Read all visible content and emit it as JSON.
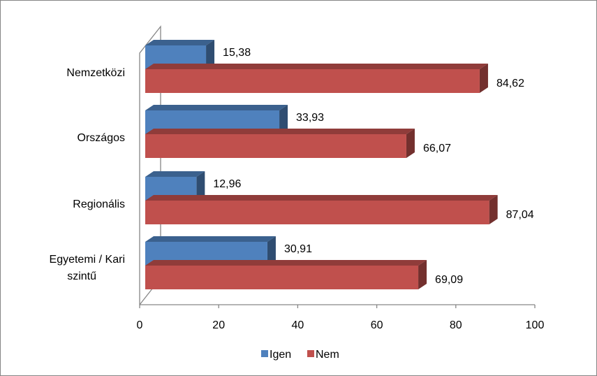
{
  "chart_data": {
    "type": "bar",
    "orientation": "horizontal",
    "three_d": true,
    "categories": [
      "Nemzetközi",
      "Országos",
      "Regionális",
      "Egyetemi / Kari szintű"
    ],
    "series": [
      {
        "name": "Igen",
        "values": [
          15.38,
          33.93,
          12.96,
          30.91
        ],
        "color": "#4F81BD",
        "labels": [
          "15,38",
          "33,93",
          "12,96",
          "30,91"
        ]
      },
      {
        "name": "Nem",
        "values": [
          84.62,
          66.07,
          87.04,
          69.09
        ],
        "color": "#C0504D",
        "labels": [
          "84,62",
          "66,07",
          "87,04",
          "69,09"
        ]
      }
    ],
    "xlim": [
      0,
      100
    ],
    "xticks": [
      0,
      20,
      40,
      60,
      80,
      100
    ],
    "grid": false,
    "legend_position": "bottom"
  }
}
